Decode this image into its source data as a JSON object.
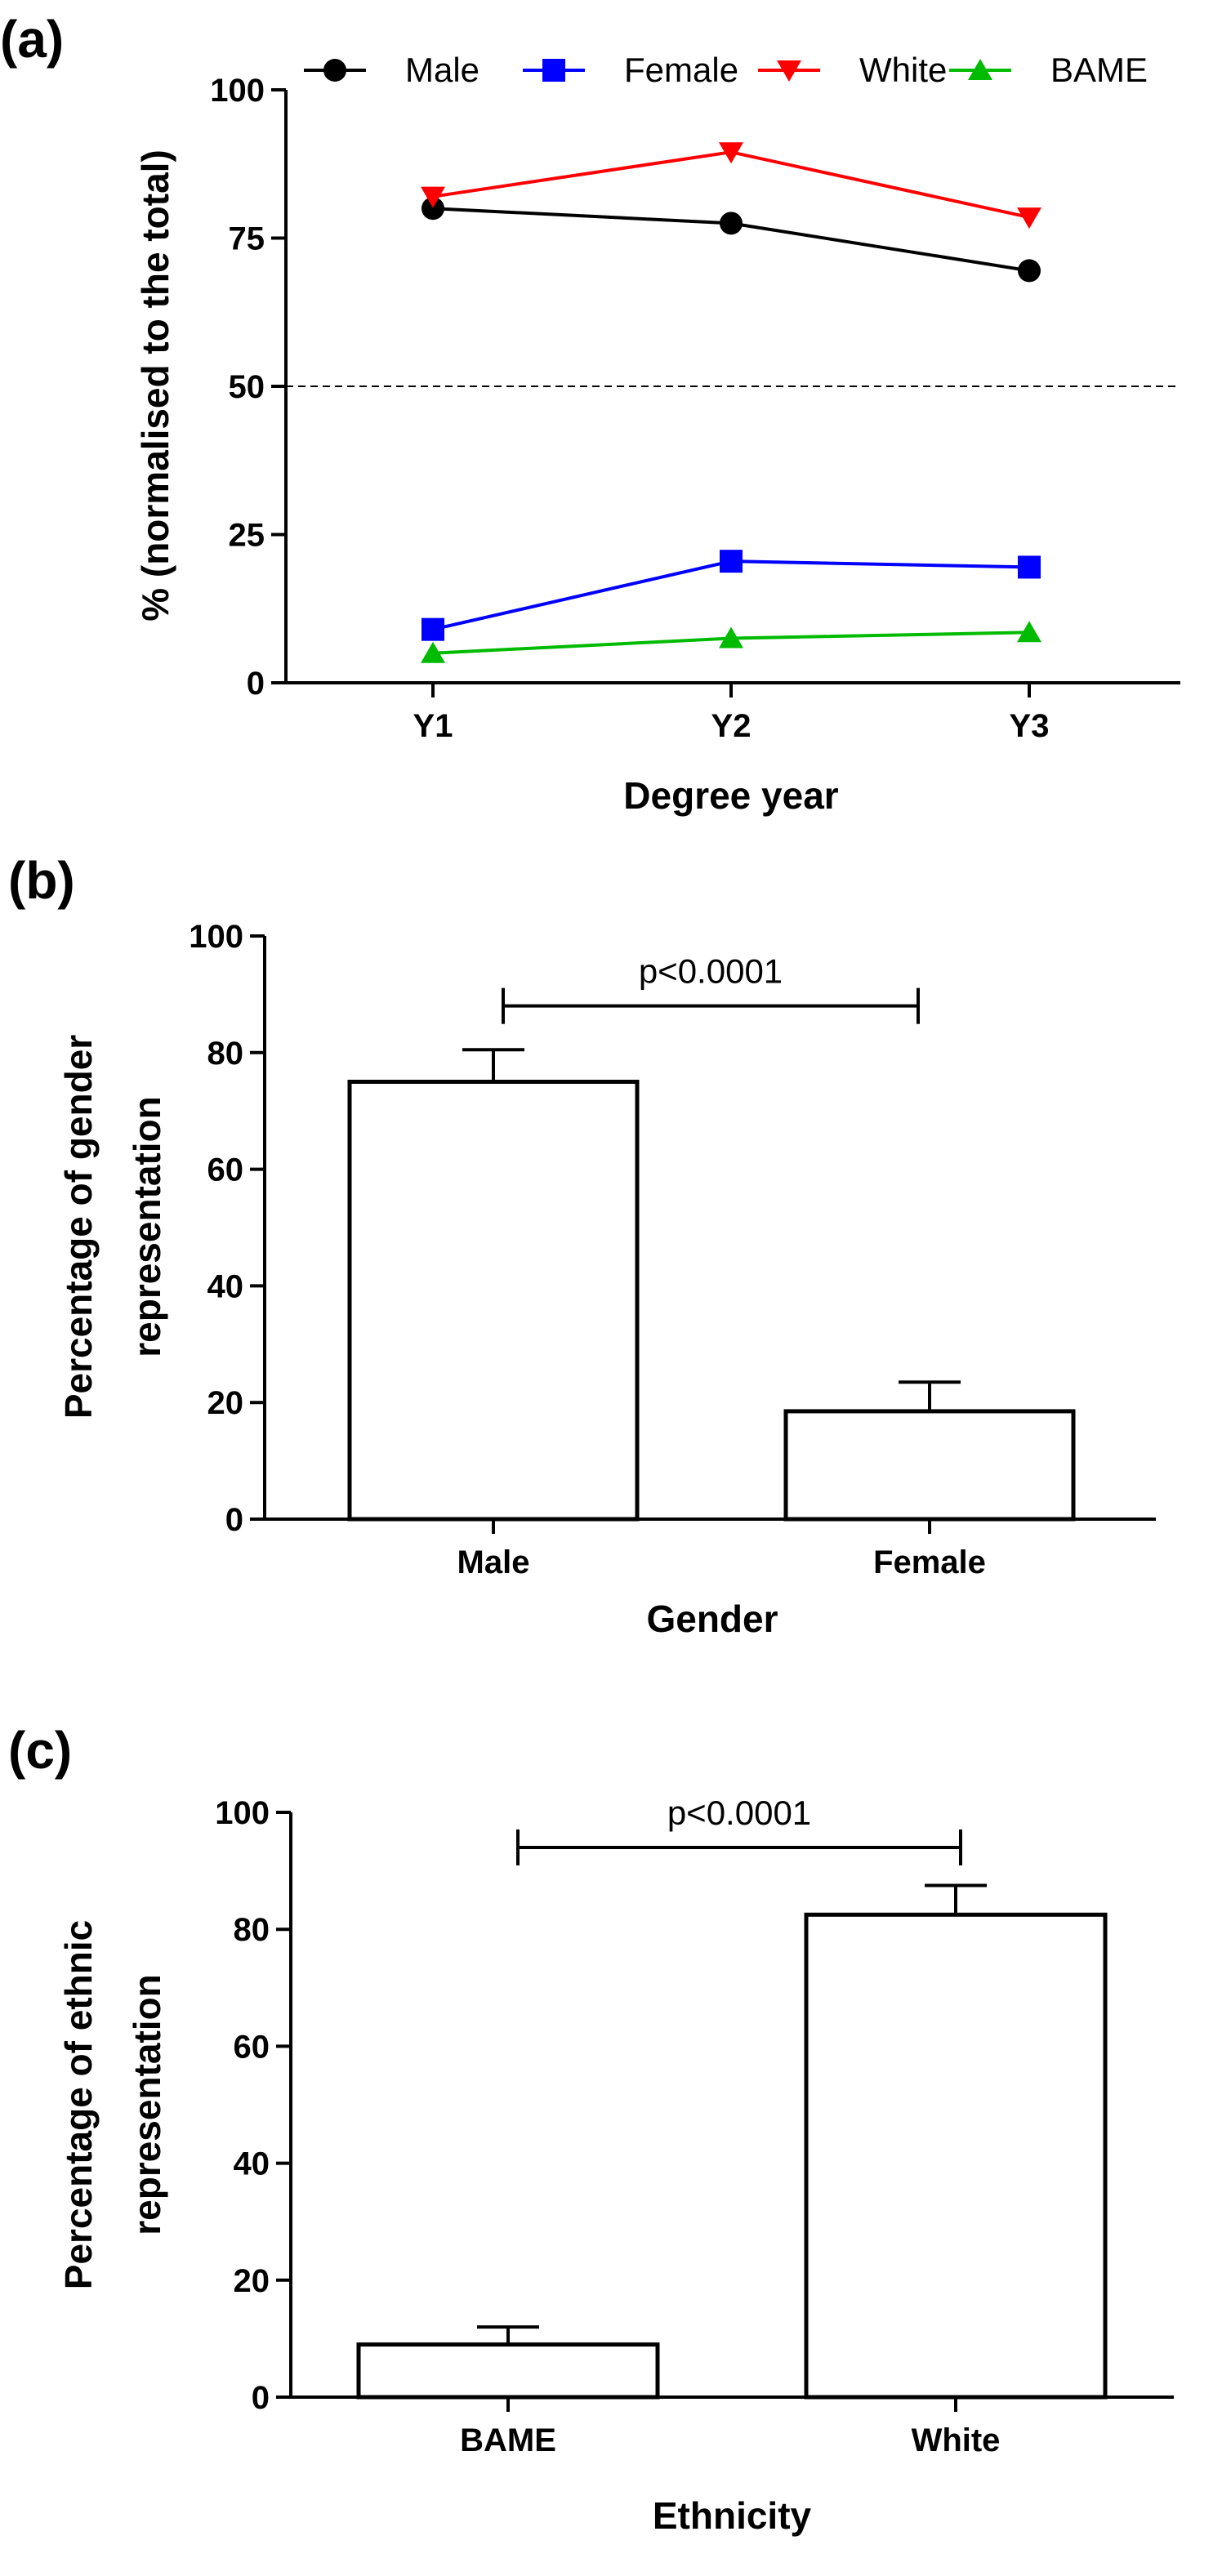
{
  "chart_data": [
    {
      "type": "line",
      "panel_label": "(a)",
      "title": "",
      "xlabel": "Degree year",
      "ylabel": "% (normalised to the total)",
      "categories": [
        "Y1",
        "Y2",
        "Y3"
      ],
      "ylim": [
        0,
        100
      ],
      "yticks": [
        0,
        25,
        50,
        75,
        100
      ],
      "reference_line": 50,
      "legend_position": "top",
      "series": [
        {
          "name": "Male",
          "values": [
            80,
            77.5,
            69.5
          ],
          "color": "#000000",
          "marker": "circle"
        },
        {
          "name": "Female",
          "values": [
            9,
            20.5,
            19.5
          ],
          "color": "#0000ff",
          "marker": "square"
        },
        {
          "name": "White",
          "values": [
            82,
            89.5,
            78.5
          ],
          "color": "#ff0000",
          "marker": "triangle-down"
        },
        {
          "name": "BAME",
          "values": [
            5,
            7.5,
            8.5
          ],
          "color": "#00bb00",
          "marker": "triangle-up"
        }
      ]
    },
    {
      "type": "bar",
      "panel_label": "(b)",
      "xlabel": "Gender",
      "ylabel_lines": [
        "Percentage of gender",
        "representation"
      ],
      "categories": [
        "Male",
        "Female"
      ],
      "values": [
        75,
        18.5
      ],
      "errors": [
        5.5,
        5
      ],
      "ylim": [
        0,
        100
      ],
      "yticks": [
        0,
        20,
        40,
        60,
        80,
        100
      ],
      "annotation": {
        "text": "p<0.0001",
        "level": 88
      }
    },
    {
      "type": "bar",
      "panel_label": "(c)",
      "xlabel": "Ethnicity",
      "ylabel_lines": [
        "Percentage of ethnic",
        "representation"
      ],
      "categories": [
        "BAME",
        "White"
      ],
      "values": [
        9,
        82.5
      ],
      "errors": [
        3,
        5
      ],
      "ylim": [
        0,
        100
      ],
      "yticks": [
        0,
        20,
        40,
        60,
        80,
        100
      ],
      "annotation": {
        "text": "p<0.0001",
        "level": 94
      }
    }
  ]
}
